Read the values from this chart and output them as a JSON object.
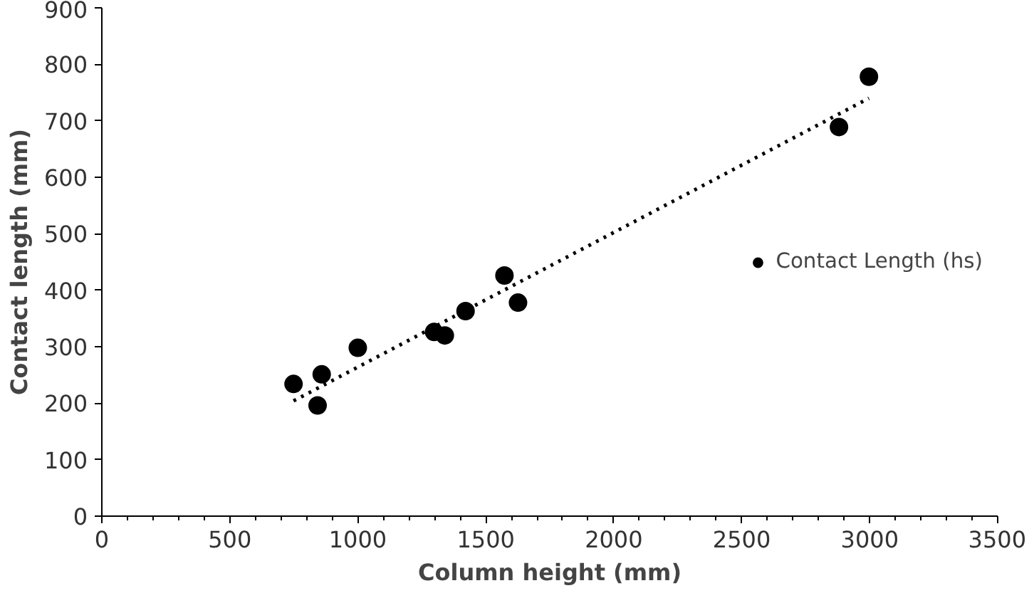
{
  "chart_data": {
    "type": "scatter",
    "xlabel": "Column height (mm)",
    "ylabel": "Contact length (mm)",
    "xlim": [
      0,
      3500
    ],
    "xticks": [
      0,
      500,
      1000,
      1500,
      2000,
      2500,
      3000,
      3500
    ],
    "ylim": [
      0,
      900
    ],
    "yticks": [
      0,
      100,
      200,
      300,
      400,
      500,
      600,
      700,
      800,
      900
    ],
    "grid": false,
    "legend": "right",
    "series": [
      {
        "name": "Contact Length (hs)",
        "color": "#000000",
        "marker": "circle",
        "x": [
          749,
          843,
          859,
          1000,
          1298,
          1340,
          1421,
          1573,
          1626,
          2880,
          2997
        ],
        "values": [
          234,
          196,
          251,
          298,
          326,
          320,
          363,
          426,
          378,
          689,
          778
        ]
      },
      {
        "type": "line",
        "color": "#000000",
        "line_style": "dotted",
        "marker": "none",
        "x": [
          749,
          2997
        ],
        "values": [
          204,
          740
        ]
      }
    ]
  }
}
